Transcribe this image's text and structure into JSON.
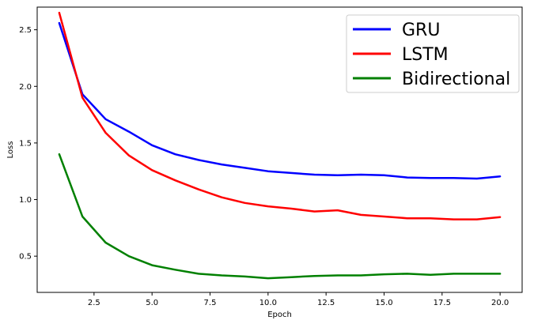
{
  "chart_data": {
    "type": "line",
    "xlabel": "Epoch",
    "ylabel": "Loss",
    "xlim": [
      0.05,
      20.95
    ],
    "ylim": [
      0.18,
      2.7
    ],
    "x_ticks": [
      2.5,
      5.0,
      7.5,
      10.0,
      12.5,
      15.0,
      17.5,
      20.0
    ],
    "y_ticks": [
      0.5,
      1.0,
      1.5,
      2.0,
      2.5
    ],
    "x_tick_labels": [
      "2.5",
      "5.0",
      "7.5",
      "10.0",
      "12.5",
      "15.0",
      "17.5",
      "20.0"
    ],
    "y_tick_labels": [
      "0.5",
      "1.0",
      "1.5",
      "2.0",
      "2.5"
    ],
    "grid": false,
    "legend_position": "top-right",
    "x": [
      1,
      2,
      3,
      4,
      5,
      6,
      7,
      8,
      9,
      10,
      11,
      12,
      13,
      14,
      15,
      16,
      17,
      18,
      19,
      20
    ],
    "series": [
      {
        "name": "GRU",
        "color": "#0000ff",
        "values": [
          2.56,
          1.93,
          1.71,
          1.6,
          1.48,
          1.4,
          1.35,
          1.31,
          1.28,
          1.25,
          1.235,
          1.22,
          1.215,
          1.22,
          1.215,
          1.195,
          1.19,
          1.19,
          1.185,
          1.205
        ]
      },
      {
        "name": "LSTM",
        "color": "#ff0000",
        "values": [
          2.65,
          1.9,
          1.59,
          1.39,
          1.26,
          1.17,
          1.09,
          1.02,
          0.97,
          0.94,
          0.92,
          0.895,
          0.905,
          0.865,
          0.85,
          0.835,
          0.835,
          0.825,
          0.825,
          0.845
        ]
      },
      {
        "name": "Bidirectional",
        "color": "#008000",
        "values": [
          1.4,
          0.85,
          0.62,
          0.5,
          0.42,
          0.38,
          0.345,
          0.33,
          0.32,
          0.305,
          0.315,
          0.325,
          0.33,
          0.33,
          0.34,
          0.345,
          0.335,
          0.345,
          0.345,
          0.345
        ]
      }
    ]
  }
}
